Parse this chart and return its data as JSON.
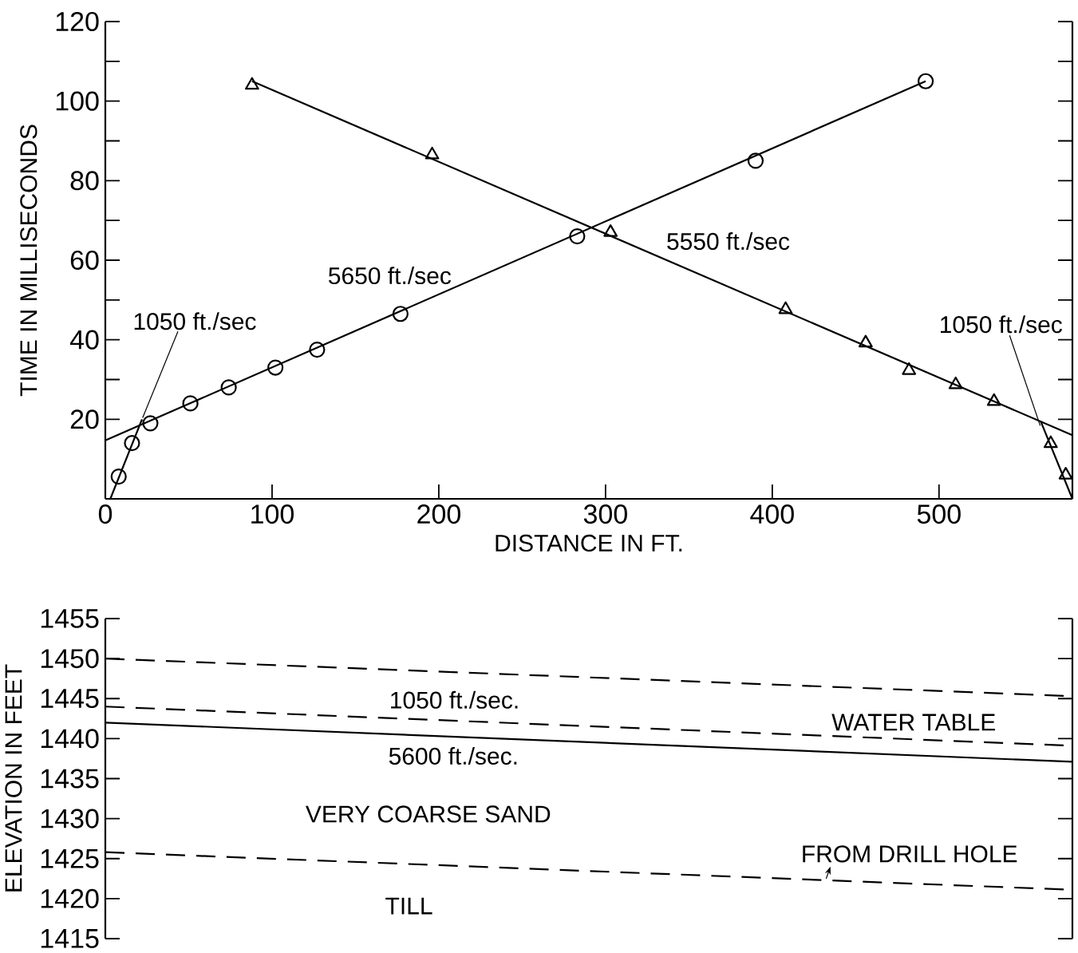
{
  "chart_data": [
    {
      "type": "scatter",
      "xlabel": "DISTANCE IN FT.",
      "ylabel": "TIME IN MILLISECONDS",
      "xlim": [
        0,
        580
      ],
      "xticks": [
        0,
        100,
        200,
        300,
        400,
        500
      ],
      "ylim": [
        0,
        120
      ],
      "yticks": [
        20,
        40,
        60,
        80,
        100,
        120
      ],
      "series": [
        {
          "marker": "circle",
          "color": "#000000",
          "x": [
            8,
            16,
            27,
            51,
            74,
            102,
            127,
            177,
            283,
            390,
            492
          ],
          "values": [
            5.6,
            14,
            19,
            24,
            28,
            33,
            37.5,
            46.5,
            66,
            85,
            105
          ]
        },
        {
          "marker": "triangle",
          "color": "#000000",
          "x": [
            88,
            196,
            303,
            408,
            456,
            482,
            510,
            533,
            567,
            576
          ],
          "values": [
            104,
            86.5,
            67,
            47.6,
            39.2,
            32.3,
            28.7,
            24.5,
            13.9,
            6
          ]
        },
        {
          "type": "line",
          "color": "#000000",
          "x": [
            3,
            22
          ],
          "values": [
            0,
            20
          ]
        },
        {
          "type": "line",
          "color": "#000000",
          "x": [
            0,
            492
          ],
          "values": [
            14.7,
            105
          ]
        },
        {
          "type": "line",
          "color": "#000000",
          "x": [
            88,
            580
          ],
          "values": [
            105,
            16
          ]
        },
        {
          "type": "line",
          "color": "#000000",
          "x": [
            561,
            580
          ],
          "values": [
            19.5,
            0
          ]
        }
      ],
      "annotations": [
        {
          "text": "1050 ft./sec",
          "x": 22,
          "y": 20
        },
        "5650 ft./sec",
        "5550 ft./sec",
        {
          "text": "1050 ft./sec",
          "x": 561,
          "y": 18
        }
      ]
    },
    {
      "type": "line",
      "ylabel": "ELEVATION IN FEET",
      "tick_labels": "y",
      "xlim": [
        0,
        580
      ],
      "ylim": [
        1415,
        1455
      ],
      "yticks": [
        1415,
        1420,
        1425,
        1430,
        1435,
        1440,
        1445,
        1450,
        1455
      ],
      "series": [
        {
          "line_style": "dashed",
          "color": "#000000",
          "x": [
            0,
            580
          ],
          "values": [
            1450,
            1445.3
          ]
        },
        {
          "line_style": "dashed",
          "color": "#000000",
          "x": [
            0,
            580
          ],
          "values": [
            1444,
            1439.1
          ]
        },
        {
          "line_style": "solid",
          "color": "#000000",
          "x": [
            0,
            580
          ],
          "values": [
            1442,
            1437.1
          ]
        },
        {
          "line_style": "dashed",
          "color": "#000000",
          "x": [
            0,
            580
          ],
          "values": [
            1425.8,
            1421.1
          ]
        }
      ],
      "annotations": [
        "1050 ft./sec.",
        "WATER TABLE",
        "5600 ft./sec.",
        "VERY COARSE SAND",
        {
          "text": "FROM DRILL HOLE",
          "x": 432,
          "y": 1422.3
        },
        "TILL"
      ]
    }
  ]
}
